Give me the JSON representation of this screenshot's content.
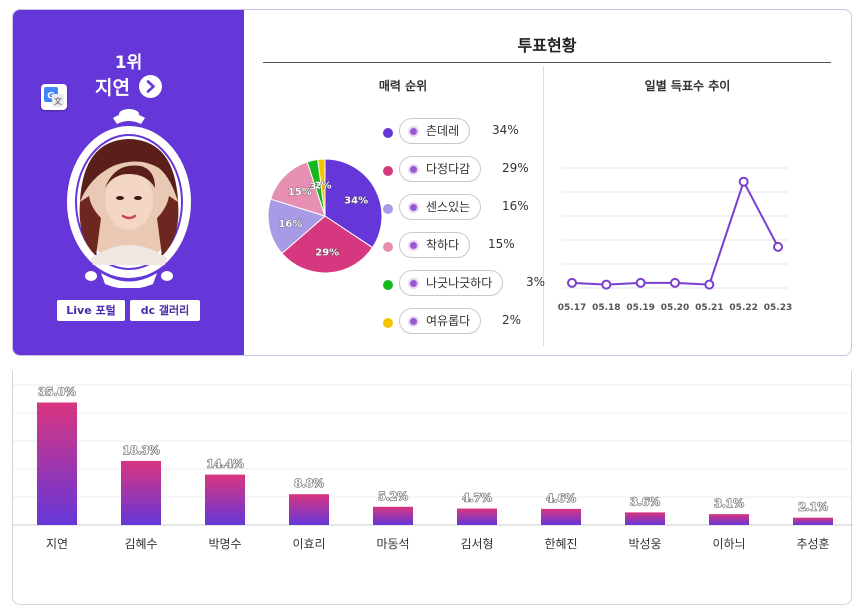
{
  "profile": {
    "rank": "1위",
    "name": "지연",
    "links": {
      "live": "Live 포털",
      "gallery": "dc 갤러리"
    },
    "icons": {
      "translate": "google-translate-icon",
      "arrow": "chevron-right-icon"
    }
  },
  "vote_status": {
    "title": "투표현황",
    "charm_title": "매력 순위",
    "daily_title": "일별 득표수 추이"
  },
  "charm_ranking": {
    "type": "pie",
    "items": [
      {
        "label": "츤데레",
        "pct": "34%",
        "value": 34,
        "color": "#6537d8"
      },
      {
        "label": "다정다감",
        "pct": "29%",
        "value": 29,
        "color": "#d6387f"
      },
      {
        "label": "센스있는",
        "pct": "16%",
        "value": 16,
        "color": "#a99ae6"
      },
      {
        "label": "착하다",
        "pct": "15%",
        "value": 15,
        "color": "#e68fb3"
      },
      {
        "label": "나긋나긋하다",
        "pct": "3%",
        "value": 3,
        "color": "#16b81b"
      },
      {
        "label": "여유롭다",
        "pct": "2%",
        "value": 2,
        "color": "#f5c400"
      }
    ]
  },
  "chart_data": [
    {
      "type": "line",
      "x": [
        "05.17",
        "05.18",
        "05.19",
        "05.20",
        "05.21",
        "05.22",
        "05.23"
      ],
      "values": [
        3,
        2,
        3,
        3,
        2,
        62,
        24
      ],
      "ylim": [
        0,
        70
      ],
      "grid": true,
      "color": "#7a3fd0"
    },
    {
      "type": "bar",
      "categories": [
        "지연",
        "김혜수",
        "박명수",
        "이효리",
        "마동석",
        "김서형",
        "한혜진",
        "박성웅",
        "이하늬",
        "추성훈"
      ],
      "values": [
        35.0,
        18.3,
        14.4,
        8.8,
        5.2,
        4.7,
        4.6,
        3.6,
        3.1,
        2.1
      ],
      "labels": [
        "35.0%",
        "18.3%",
        "14.4%",
        "8.8%",
        "5.2%",
        "4.7%",
        "4.6%",
        "3.6%",
        "3.1%",
        "2.1%"
      ],
      "ylim": [
        0,
        40
      ],
      "grid": true
    }
  ]
}
